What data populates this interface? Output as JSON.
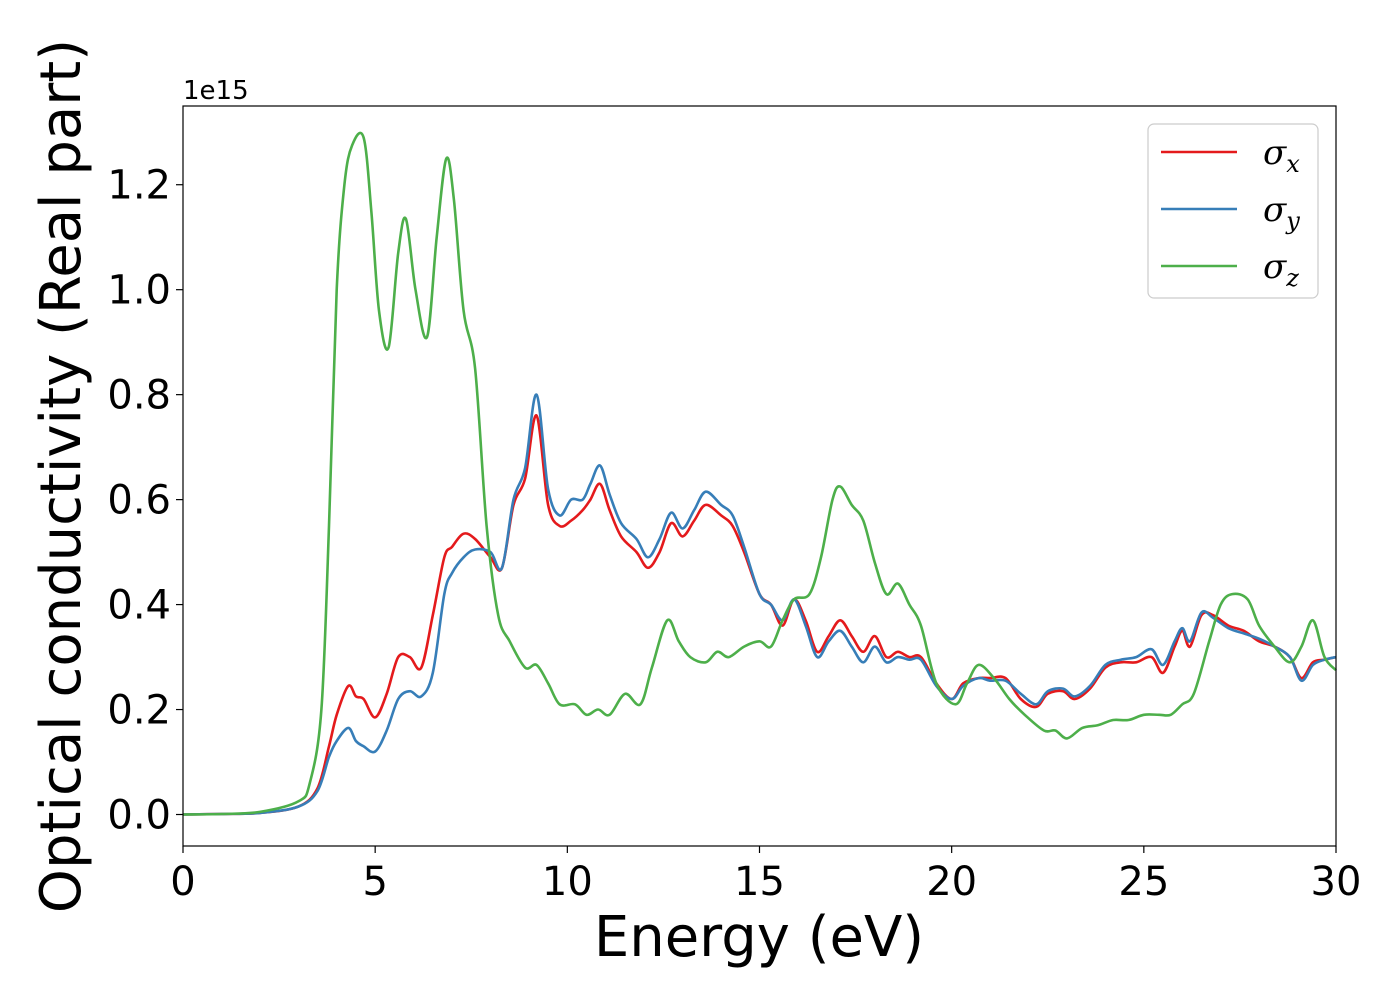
{
  "chart_data": {
    "type": "line",
    "xlabel": "Energy (eV)",
    "ylabel": "Optical conductivity (Real part)",
    "y_offset_label": "1e15",
    "xlim": [
      0,
      30
    ],
    "ylim": [
      -0.06,
      1.35
    ],
    "xticks": [
      0,
      5,
      10,
      15,
      20,
      25,
      30
    ],
    "xtick_labels": [
      "0",
      "5",
      "10",
      "15",
      "20",
      "25",
      "30"
    ],
    "yticks": [
      0.0,
      0.2,
      0.4,
      0.6,
      0.8,
      1.0,
      1.2
    ],
    "ytick_labels": [
      "0.0",
      "0.2",
      "0.4",
      "0.6",
      "0.8",
      "1.0",
      "1.2"
    ],
    "grid": false,
    "legend_position": "top-right",
    "series": [
      {
        "name": "σx",
        "symbol": "σ",
        "subscript": "x",
        "color": "#e41a1c",
        "x": [
          0,
          1,
          2,
          3,
          3.5,
          3.8,
          4.0,
          4.3,
          4.5,
          4.7,
          5.0,
          5.3,
          5.6,
          5.9,
          6.2,
          6.5,
          6.8,
          7.0,
          7.3,
          7.6,
          8.0,
          8.3,
          8.6,
          8.9,
          9.2,
          9.5,
          9.8,
          10.1,
          10.4,
          10.6,
          10.85,
          11.1,
          11.4,
          11.8,
          12.1,
          12.4,
          12.7,
          13.0,
          13.3,
          13.6,
          14.0,
          14.3,
          14.6,
          15.0,
          15.3,
          15.6,
          15.9,
          16.2,
          16.5,
          16.8,
          17.1,
          17.4,
          17.7,
          18.0,
          18.3,
          18.6,
          18.9,
          19.2,
          19.6,
          20.0,
          20.3,
          20.7,
          21.0,
          21.4,
          21.8,
          22.2,
          22.5,
          22.9,
          23.2,
          23.6,
          24.0,
          24.4,
          24.8,
          25.2,
          25.5,
          25.8,
          26.0,
          26.2,
          26.5,
          26.8,
          27.2,
          27.6,
          28.0,
          28.4,
          28.8,
          29.1,
          29.4,
          29.7,
          30.0
        ],
        "y": [
          0,
          0.001,
          0.003,
          0.015,
          0.05,
          0.13,
          0.19,
          0.245,
          0.225,
          0.22,
          0.185,
          0.23,
          0.3,
          0.3,
          0.28,
          0.38,
          0.49,
          0.51,
          0.535,
          0.525,
          0.49,
          0.47,
          0.59,
          0.64,
          0.76,
          0.59,
          0.55,
          0.56,
          0.58,
          0.6,
          0.63,
          0.58,
          0.53,
          0.5,
          0.47,
          0.5,
          0.555,
          0.53,
          0.56,
          0.59,
          0.57,
          0.55,
          0.5,
          0.42,
          0.4,
          0.36,
          0.41,
          0.37,
          0.31,
          0.34,
          0.37,
          0.34,
          0.31,
          0.34,
          0.3,
          0.31,
          0.3,
          0.3,
          0.25,
          0.22,
          0.25,
          0.26,
          0.26,
          0.26,
          0.22,
          0.205,
          0.23,
          0.235,
          0.22,
          0.24,
          0.28,
          0.29,
          0.29,
          0.3,
          0.27,
          0.32,
          0.35,
          0.32,
          0.38,
          0.38,
          0.36,
          0.35,
          0.33,
          0.32,
          0.3,
          0.26,
          0.29,
          0.295,
          0.3
        ]
      },
      {
        "name": "σy",
        "symbol": "σ",
        "subscript": "y",
        "color": "#377eb8",
        "x": [
          0,
          1,
          2,
          3,
          3.5,
          3.8,
          4.0,
          4.3,
          4.5,
          4.7,
          5.0,
          5.3,
          5.6,
          5.9,
          6.2,
          6.5,
          6.8,
          7.0,
          7.3,
          7.6,
          8.0,
          8.3,
          8.6,
          8.9,
          9.2,
          9.5,
          9.8,
          10.1,
          10.4,
          10.6,
          10.85,
          11.1,
          11.4,
          11.8,
          12.1,
          12.4,
          12.7,
          13.0,
          13.3,
          13.6,
          14.0,
          14.3,
          14.6,
          15.0,
          15.3,
          15.6,
          15.9,
          16.2,
          16.5,
          16.8,
          17.1,
          17.4,
          17.7,
          18.0,
          18.3,
          18.6,
          18.9,
          19.2,
          19.6,
          20.0,
          20.3,
          20.7,
          21.0,
          21.4,
          21.8,
          22.2,
          22.5,
          22.9,
          23.2,
          23.6,
          24.0,
          24.4,
          24.8,
          25.2,
          25.5,
          25.8,
          26.0,
          26.2,
          26.5,
          26.8,
          27.2,
          27.6,
          28.0,
          28.4,
          28.8,
          29.1,
          29.4,
          29.7,
          30.0
        ],
        "y": [
          0,
          0.001,
          0.003,
          0.015,
          0.045,
          0.11,
          0.14,
          0.165,
          0.14,
          0.13,
          0.12,
          0.16,
          0.22,
          0.235,
          0.225,
          0.27,
          0.42,
          0.46,
          0.49,
          0.505,
          0.5,
          0.47,
          0.6,
          0.66,
          0.8,
          0.62,
          0.57,
          0.6,
          0.6,
          0.63,
          0.665,
          0.61,
          0.555,
          0.525,
          0.49,
          0.525,
          0.575,
          0.545,
          0.58,
          0.615,
          0.59,
          0.57,
          0.51,
          0.42,
          0.4,
          0.37,
          0.41,
          0.36,
          0.3,
          0.33,
          0.35,
          0.32,
          0.29,
          0.32,
          0.29,
          0.3,
          0.295,
          0.295,
          0.245,
          0.22,
          0.245,
          0.26,
          0.255,
          0.255,
          0.23,
          0.21,
          0.235,
          0.24,
          0.225,
          0.245,
          0.285,
          0.295,
          0.3,
          0.315,
          0.285,
          0.33,
          0.355,
          0.33,
          0.385,
          0.375,
          0.355,
          0.345,
          0.335,
          0.32,
          0.3,
          0.255,
          0.285,
          0.295,
          0.3
        ]
      },
      {
        "name": "σz",
        "symbol": "σ",
        "subscript": "z",
        "color": "#4daf4a",
        "x": [
          0,
          1,
          2,
          3,
          3.3,
          3.6,
          3.8,
          4.0,
          4.2,
          4.4,
          4.7,
          4.9,
          5.1,
          5.35,
          5.6,
          5.8,
          6.05,
          6.35,
          6.6,
          6.85,
          7.05,
          7.3,
          7.6,
          7.9,
          8.2,
          8.5,
          8.9,
          9.2,
          9.5,
          9.8,
          10.2,
          10.5,
          10.8,
          11.1,
          11.5,
          11.9,
          12.2,
          12.6,
          12.9,
          13.2,
          13.6,
          13.9,
          14.2,
          14.6,
          15.0,
          15.3,
          15.6,
          15.9,
          16.3,
          16.6,
          16.9,
          17.1,
          17.4,
          17.7,
          18.0,
          18.3,
          18.6,
          18.9,
          19.2,
          19.6,
          20.1,
          20.4,
          20.7,
          21.1,
          21.5,
          21.9,
          22.4,
          22.7,
          23.0,
          23.4,
          23.8,
          24.2,
          24.6,
          25.0,
          25.4,
          25.7,
          26.0,
          26.3,
          26.7,
          27.0,
          27.3,
          27.7,
          28.0,
          28.4,
          28.8,
          29.1,
          29.4,
          29.7,
          30.0
        ],
        "y": [
          0,
          0.001,
          0.005,
          0.025,
          0.06,
          0.2,
          0.55,
          1.0,
          1.2,
          1.275,
          1.29,
          1.15,
          0.96,
          0.89,
          1.07,
          1.135,
          1.0,
          0.91,
          1.1,
          1.25,
          1.17,
          0.96,
          0.85,
          0.55,
          0.38,
          0.33,
          0.28,
          0.285,
          0.25,
          0.21,
          0.21,
          0.19,
          0.2,
          0.19,
          0.23,
          0.21,
          0.28,
          0.37,
          0.33,
          0.3,
          0.29,
          0.31,
          0.3,
          0.32,
          0.33,
          0.32,
          0.37,
          0.41,
          0.42,
          0.49,
          0.6,
          0.625,
          0.59,
          0.56,
          0.48,
          0.42,
          0.44,
          0.4,
          0.36,
          0.25,
          0.21,
          0.25,
          0.285,
          0.26,
          0.22,
          0.19,
          0.16,
          0.16,
          0.145,
          0.165,
          0.17,
          0.18,
          0.18,
          0.19,
          0.19,
          0.19,
          0.21,
          0.23,
          0.33,
          0.4,
          0.42,
          0.41,
          0.36,
          0.32,
          0.29,
          0.32,
          0.37,
          0.3,
          0.275
        ]
      }
    ]
  }
}
